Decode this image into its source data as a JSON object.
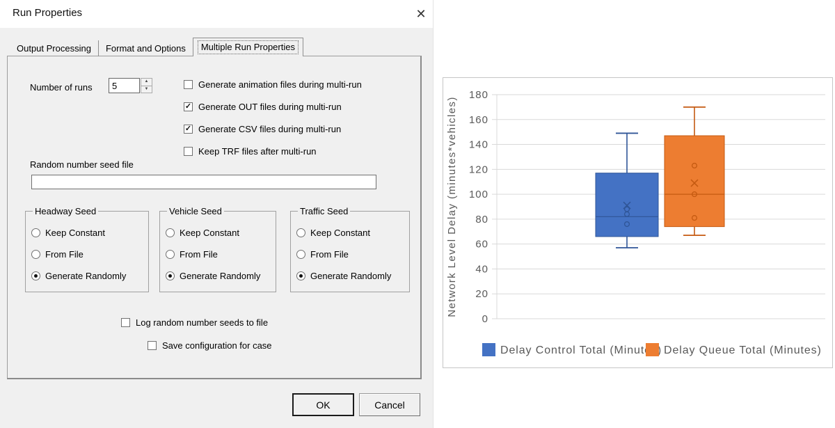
{
  "window": {
    "title": "Run Properties",
    "close_icon": "✕"
  },
  "tabs": [
    {
      "label": "Output Processing",
      "active": false
    },
    {
      "label": "Format and Options",
      "active": false
    },
    {
      "label": "Multiple Run Properties",
      "active": true
    }
  ],
  "form": {
    "number_of_runs_label": "Number of runs",
    "number_of_runs_value": "5",
    "checkboxes": [
      {
        "label": "Generate animation files during multi-run",
        "checked": false
      },
      {
        "label": "Generate OUT files during multi-run",
        "checked": true
      },
      {
        "label": "Generate CSV files during multi-run",
        "checked": true
      },
      {
        "label": "Keep TRF files after multi-run",
        "checked": false
      }
    ],
    "seed_file_label": "Random number seed file",
    "seed_file_value": "",
    "seed_groups": [
      {
        "title": "Headway Seed",
        "options": [
          "Keep Constant",
          "From File",
          "Generate Randomly"
        ],
        "selected": 2
      },
      {
        "title": "Vehicle Seed",
        "options": [
          "Keep Constant",
          "From File",
          "Generate Randomly"
        ],
        "selected": 2
      },
      {
        "title": "Traffic Seed",
        "options": [
          "Keep Constant",
          "From File",
          "Generate Randomly"
        ],
        "selected": 2
      }
    ],
    "bottom_checkboxes": [
      {
        "label": "Log random number seeds to file",
        "checked": false
      },
      {
        "label": "Save configuration for case",
        "checked": false
      }
    ]
  },
  "buttons": {
    "ok": "OK",
    "cancel": "Cancel"
  },
  "check_glyph": "✓",
  "spinner_up_icon": "▲",
  "spinner_down_icon": "▼",
  "chart_data": {
    "type": "boxplot",
    "title": "",
    "ylabel": "Network Level Delay (minutes*vehicles)",
    "ylim": [
      0,
      180
    ],
    "yticks": [
      0,
      20,
      40,
      60,
      80,
      100,
      120,
      140,
      160,
      180
    ],
    "grid": true,
    "grid_color": "#d9d9d9",
    "text_color": "#595959",
    "legend_position": "bottom",
    "series": [
      {
        "name": "Delay Control Total (Minutes)",
        "color": "#4472C4",
        "border_color": "#2F5597",
        "whisker_low": 57,
        "q1": 66,
        "median": 82,
        "q3": 117,
        "whisker_high": 149,
        "mean": 91,
        "points": [
          88,
          84,
          76
        ]
      },
      {
        "name": "Delay Queue Total (Minutes)",
        "color": "#ED7D31",
        "border_color": "#C55A11",
        "whisker_low": 67,
        "q1": 74,
        "median": 100,
        "q3": 147,
        "whisker_high": 170,
        "mean": 109,
        "points": [
          123,
          100,
          81
        ]
      }
    ]
  }
}
